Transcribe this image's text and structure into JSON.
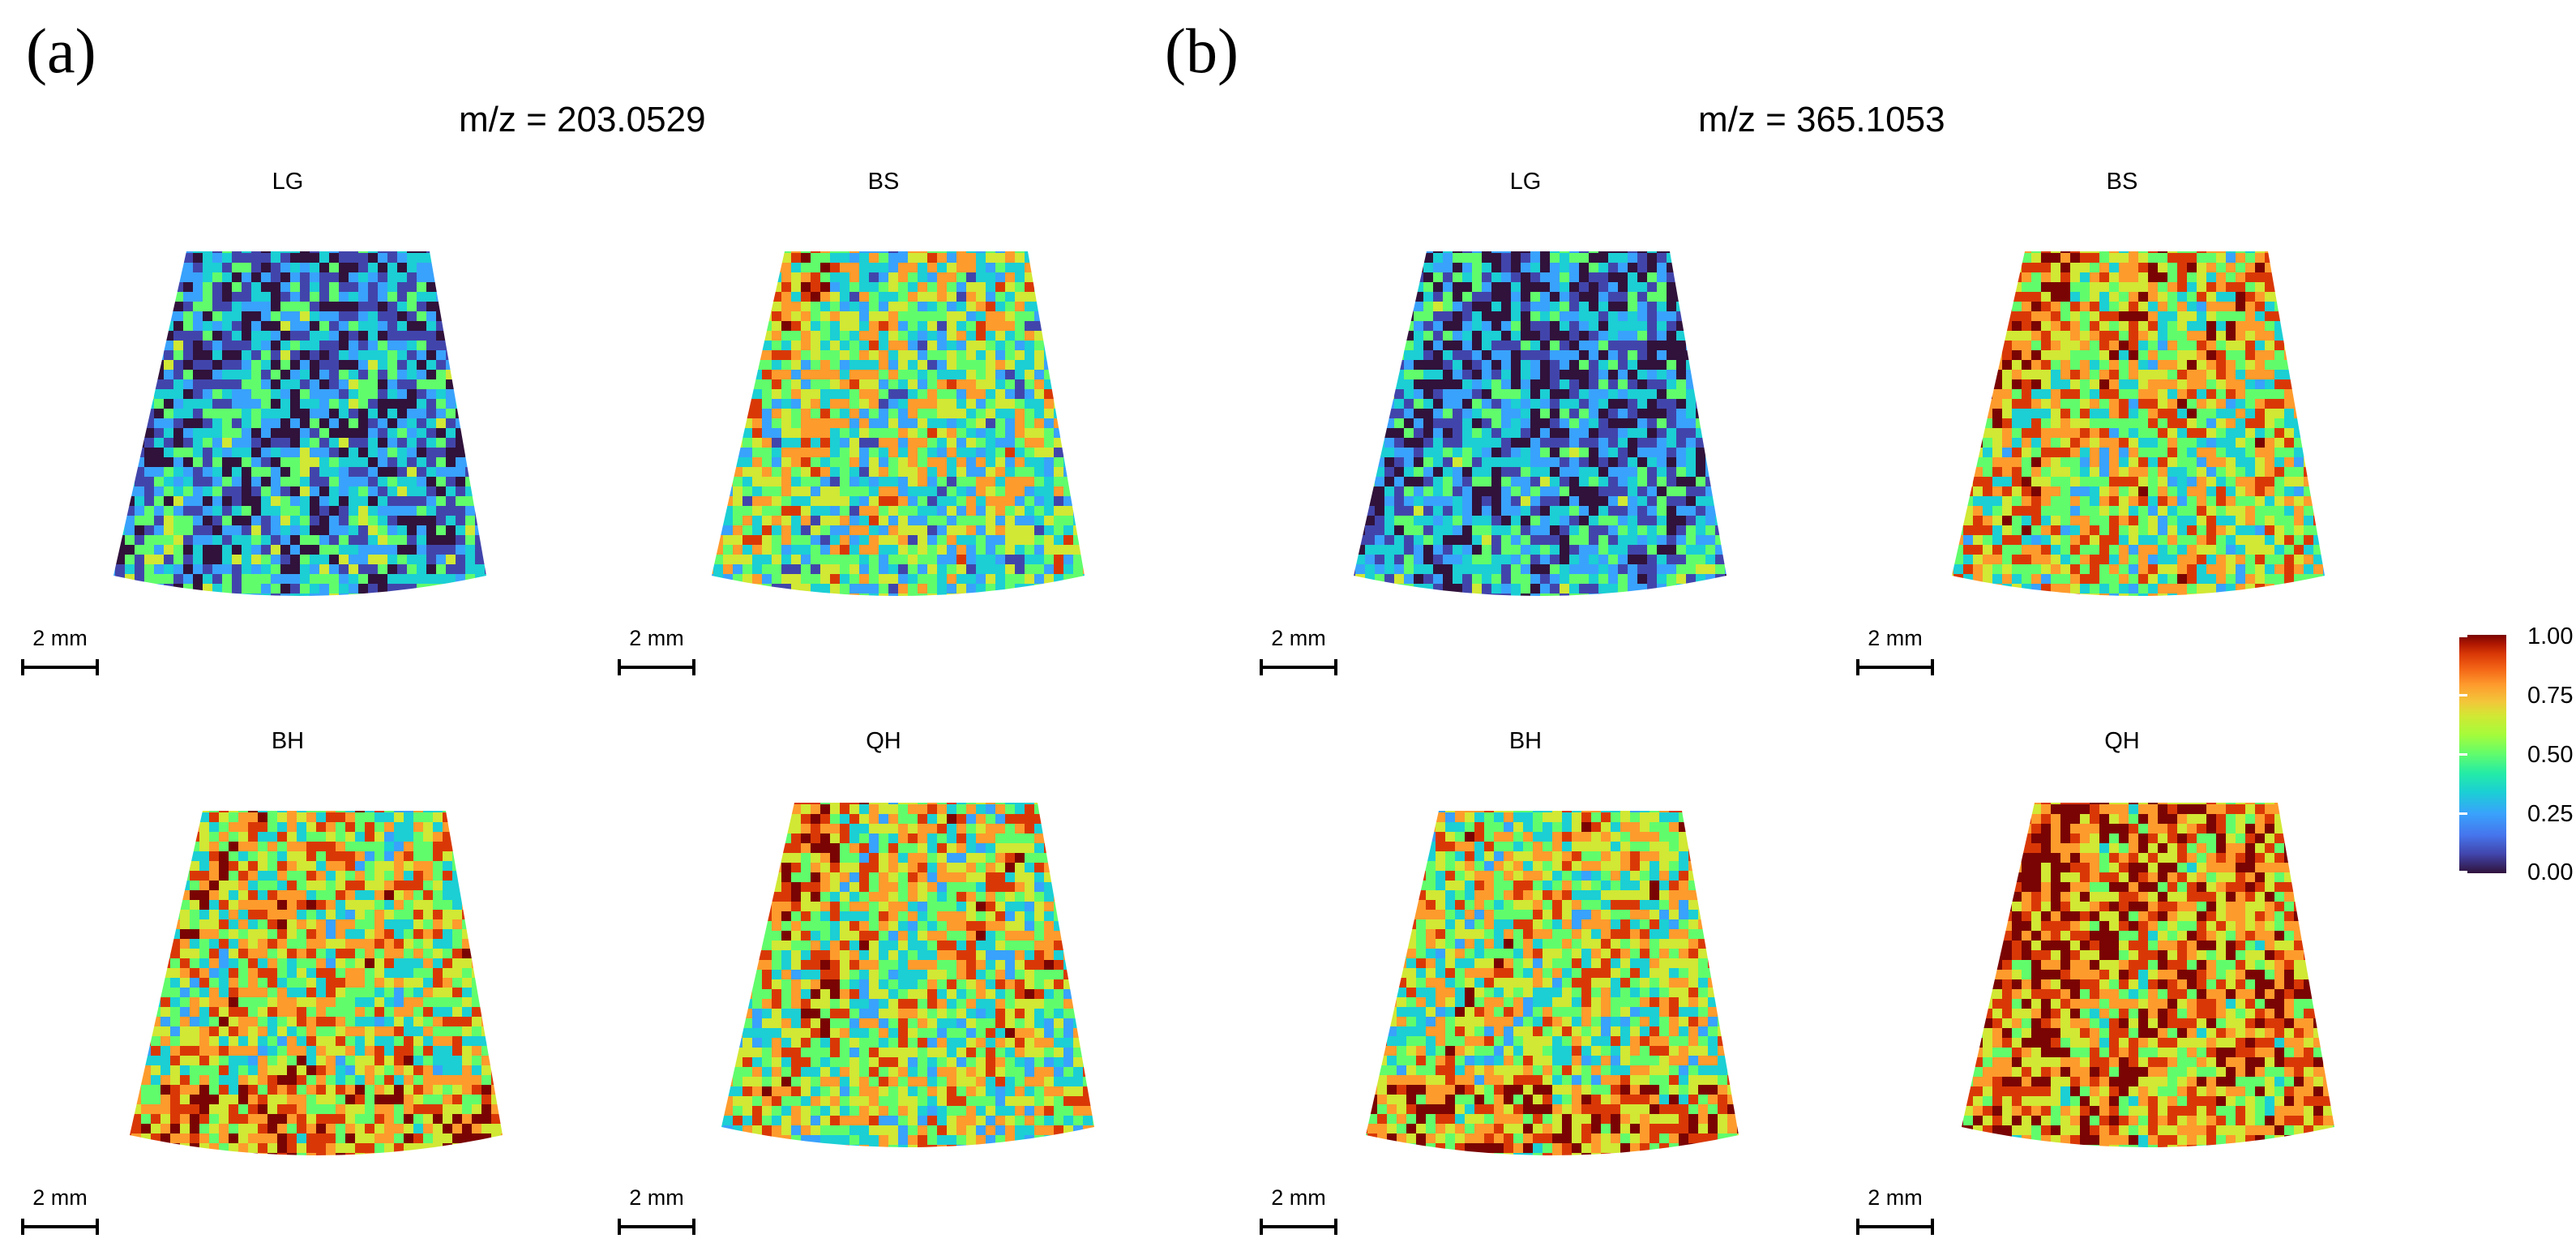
{
  "panels": [
    {
      "letter": "(a)",
      "mz": "m/z = 203.0529",
      "tiles": [
        {
          "label": "LG",
          "scale": "2 mm"
        },
        {
          "label": "BS",
          "scale": "2 mm"
        },
        {
          "label": "BH",
          "scale": "2 mm"
        },
        {
          "label": "QH",
          "scale": "2 mm"
        }
      ]
    },
    {
      "letter": "(b)",
      "mz": "m/z = 365.1053",
      "tiles": [
        {
          "label": "LG",
          "scale": "2 mm"
        },
        {
          "label": "BS",
          "scale": "2 mm"
        },
        {
          "label": "BH",
          "scale": "2 mm"
        },
        {
          "label": "QH",
          "scale": "2 mm"
        }
      ]
    }
  ],
  "colorbar": {
    "ticks": [
      "1.00",
      "0.75",
      "0.50",
      "0.25",
      "0.00"
    ],
    "colors": [
      "#30123b",
      "#4145ab",
      "#39a2fc",
      "#1bcfd4",
      "#61fc6c",
      "#d1e834",
      "#fe9b2d",
      "#d93806",
      "#7a0403"
    ]
  },
  "intensity_mood": {
    "a_LG": 0.3,
    "a_BS": 0.45,
    "a_BH": 0.62,
    "a_QH": 0.55,
    "b_LG": 0.28,
    "b_BS": 0.58,
    "b_BH": 0.6,
    "b_QH": 0.72
  }
}
